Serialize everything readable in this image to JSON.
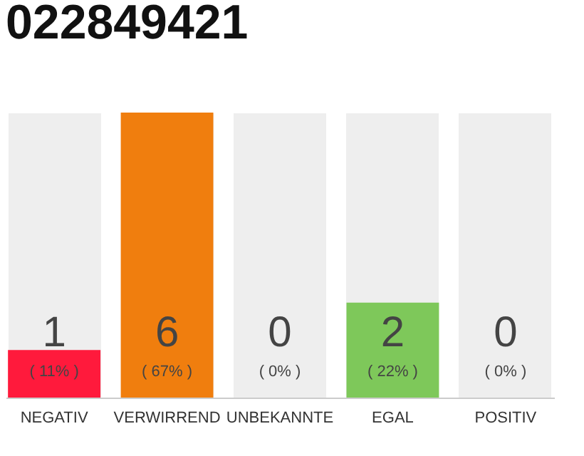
{
  "chart_data": {
    "type": "bar",
    "title": "022849421",
    "categories": [
      "NEGATIV",
      "VERWIRREND",
      "UNBEKANNTE",
      "EGAL",
      "POSITIV"
    ],
    "values": [
      1,
      6,
      0,
      2,
      0
    ],
    "colors": [
      "#ff1a3c",
      "#f07e0e",
      "#bbbbbb",
      "#7ec85a",
      "#bbbbbb"
    ],
    "value_labels": [
      "1",
      "6",
      "0",
      "2",
      "0"
    ],
    "grid": "x",
    "annotations": [
      "( 11% )",
      "( 67% )",
      "( 0% )",
      "( 22% )",
      "( 0% )"
    ]
  }
}
